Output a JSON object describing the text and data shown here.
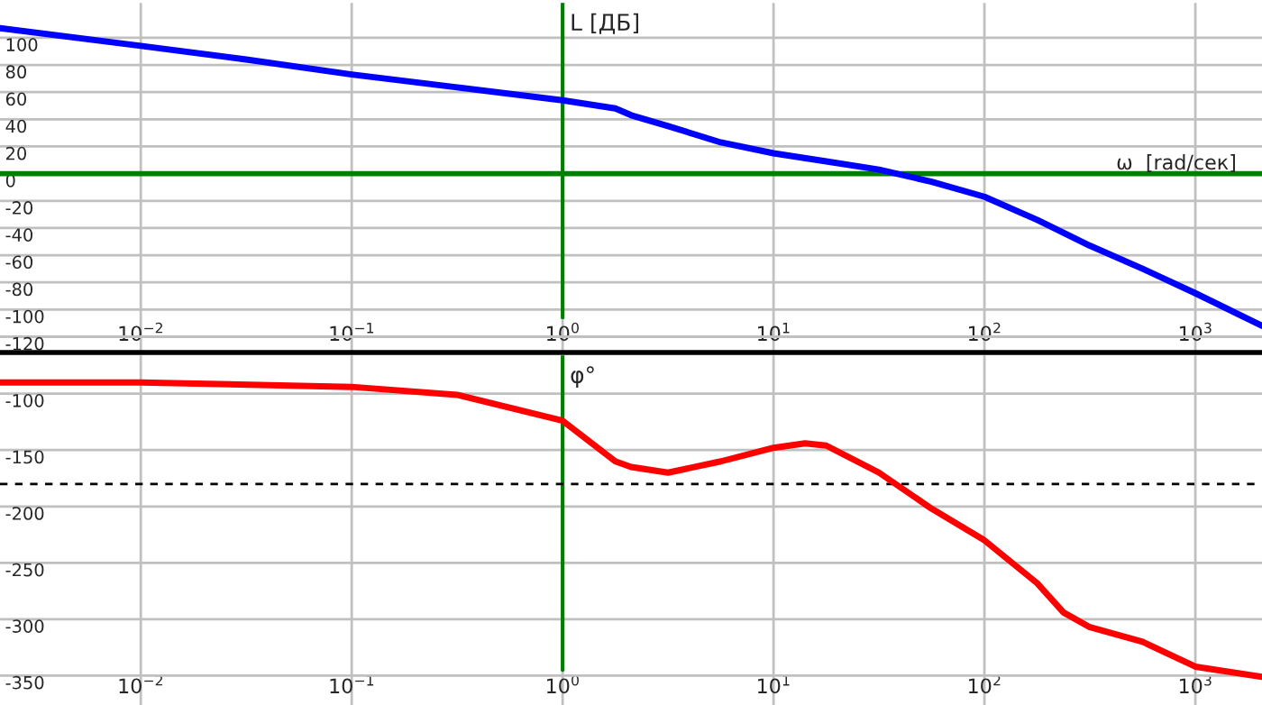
{
  "chart_data": [
    {
      "type": "line",
      "ylabel": "L [ДБ]",
      "xlabel": "ω  [rad/сек]",
      "log": "x",
      "grid": true,
      "legend": false,
      "x": [
        0.00215,
        0.01,
        0.0316,
        0.1,
        0.316,
        1,
        1.778,
        2.113,
        3.162,
        5.623,
        10,
        17.78,
        31.62,
        56.23,
        100,
        177.8,
        316.2,
        562.3,
        1000,
        2070
      ],
      "series": [
        {
          "color": "#0000ff",
          "values": [
            107,
            94,
            84,
            73,
            63.5,
            54,
            48,
            43,
            35,
            23,
            15,
            9,
            3,
            -6,
            -17,
            -34,
            -53,
            -70,
            -88,
            -112
          ]
        }
      ],
      "xlim": [
        0.00215,
        2070
      ],
      "ylim": [
        -131.6,
        125.7
      ],
      "xticks": [
        {
          "value": 0.01,
          "label": "10$^{−2}$"
        },
        {
          "value": 0.1,
          "label": "10$^{−1}$"
        },
        {
          "value": 1,
          "label": "10$^{0}$"
        },
        {
          "value": 10,
          "label": "10$^{1}$"
        },
        {
          "value": 100,
          "label": "10$^{2}$"
        },
        {
          "value": 1000,
          "label": "10$^{3}$"
        }
      ],
      "yticks": [
        -120,
        -100,
        -80,
        -60,
        -40,
        -20,
        0,
        20,
        40,
        60,
        80,
        100
      ],
      "ref_lines": [
        {
          "axis": "x",
          "value": 1,
          "color": "#008000"
        },
        {
          "axis": "y",
          "value": 0,
          "color": "#008000"
        }
      ]
    },
    {
      "type": "line",
      "ylabel": "φ°",
      "log": "x",
      "grid": true,
      "legend": false,
      "x": [
        0.00215,
        0.01,
        0.1,
        0.316,
        1,
        1.778,
        2.113,
        3.162,
        5.623,
        10,
        14.1,
        17.78,
        31.62,
        56.23,
        100,
        177.8,
        237.1,
        316.2,
        562.3,
        1000,
        2070
      ],
      "series": [
        {
          "color": "#ff0000",
          "values": [
            -90,
            -90,
            -94,
            -101,
            -124,
            -160,
            -165,
            -170,
            -160,
            -148,
            -144,
            -146,
            -170,
            -202,
            -230,
            -268,
            -294,
            -307,
            -320,
            -342,
            -351
          ]
        }
      ],
      "xlim": [
        0.00215,
        2070
      ],
      "ylim": [
        -376,
        -66
      ],
      "xticks": [
        {
          "value": 0.01,
          "label": "10$^{−2}$"
        },
        {
          "value": 0.1,
          "label": "10$^{−1}$"
        },
        {
          "value": 1,
          "label": "10$^{0}$"
        },
        {
          "value": 10,
          "label": "10$^{1}$"
        },
        {
          "value": 100,
          "label": "10$^{2}$"
        },
        {
          "value": 1000,
          "label": "10$^{3}$"
        }
      ],
      "yticks": [
        -350,
        -300,
        -250,
        -200,
        -150,
        -100
      ],
      "ref_lines": [
        {
          "axis": "x",
          "value": 1,
          "color": "#008000"
        },
        {
          "axis": "y",
          "value": -180,
          "color": "#000000",
          "line_style": "dashed"
        }
      ]
    }
  ]
}
